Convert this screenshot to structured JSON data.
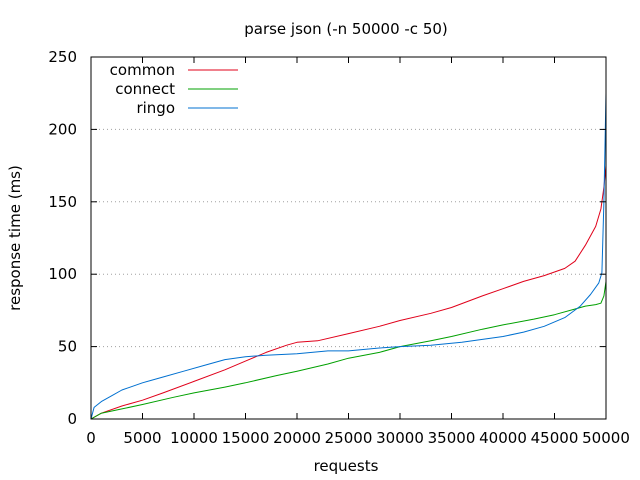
{
  "chart_data": {
    "type": "line",
    "title": "parse json (-n 50000 -c 50)",
    "xlabel": "requests",
    "ylabel": "response time (ms)",
    "xlim": [
      0,
      50000
    ],
    "ylim": [
      0,
      250
    ],
    "xticks": [
      0,
      5000,
      10000,
      15000,
      20000,
      25000,
      30000,
      35000,
      40000,
      45000,
      50000
    ],
    "xtick_labels": [
      "0",
      "5000",
      "10000",
      "15000",
      "20000",
      "25000",
      "30000",
      "35000",
      "40000",
      "45000",
      "50000"
    ],
    "yticks": [
      0,
      50,
      100,
      150,
      200,
      250
    ],
    "ytick_labels": [
      "0",
      "50",
      "100",
      "150",
      "200",
      "250"
    ],
    "grid": true,
    "legend_position": "top-left",
    "series": [
      {
        "name": "common",
        "color": "#e0001a",
        "points": [
          [
            0,
            0
          ],
          [
            1000,
            4
          ],
          [
            3000,
            9
          ],
          [
            5000,
            13
          ],
          [
            7000,
            18
          ],
          [
            10000,
            26
          ],
          [
            13000,
            34
          ],
          [
            15000,
            40
          ],
          [
            17000,
            46
          ],
          [
            19000,
            51
          ],
          [
            20000,
            53
          ],
          [
            22000,
            54
          ],
          [
            25000,
            59
          ],
          [
            28000,
            64
          ],
          [
            30000,
            68
          ],
          [
            33000,
            73
          ],
          [
            35000,
            77
          ],
          [
            38000,
            85
          ],
          [
            40000,
            90
          ],
          [
            42000,
            95
          ],
          [
            44000,
            99
          ],
          [
            46000,
            104
          ],
          [
            47000,
            109
          ],
          [
            48000,
            120
          ],
          [
            49000,
            133
          ],
          [
            49500,
            145
          ],
          [
            49800,
            160
          ],
          [
            50000,
            175
          ]
        ]
      },
      {
        "name": "connect",
        "color": "#00a000",
        "points": [
          [
            0,
            0
          ],
          [
            1000,
            4
          ],
          [
            3000,
            7
          ],
          [
            5000,
            10
          ],
          [
            8000,
            15
          ],
          [
            10000,
            18
          ],
          [
            13000,
            22
          ],
          [
            15000,
            25
          ],
          [
            18000,
            30
          ],
          [
            20000,
            33
          ],
          [
            23000,
            38
          ],
          [
            25000,
            42
          ],
          [
            28000,
            46
          ],
          [
            30000,
            50
          ],
          [
            33000,
            54
          ],
          [
            35000,
            57
          ],
          [
            38000,
            62
          ],
          [
            40000,
            65
          ],
          [
            43000,
            69
          ],
          [
            45000,
            72
          ],
          [
            47000,
            76
          ],
          [
            48000,
            78
          ],
          [
            49000,
            79
          ],
          [
            49500,
            80
          ],
          [
            49800,
            85
          ],
          [
            50000,
            95
          ]
        ]
      },
      {
        "name": "ringo",
        "color": "#0070d0",
        "points": [
          [
            0,
            0
          ],
          [
            300,
            8
          ],
          [
            1000,
            12
          ],
          [
            2000,
            16
          ],
          [
            3000,
            20
          ],
          [
            5000,
            25
          ],
          [
            7000,
            29
          ],
          [
            9000,
            33
          ],
          [
            11000,
            37
          ],
          [
            13000,
            41
          ],
          [
            15000,
            43
          ],
          [
            17000,
            44
          ],
          [
            20000,
            45
          ],
          [
            23000,
            47
          ],
          [
            25000,
            47
          ],
          [
            28000,
            49
          ],
          [
            30000,
            50
          ],
          [
            33000,
            51
          ],
          [
            36000,
            53
          ],
          [
            38000,
            55
          ],
          [
            40000,
            57
          ],
          [
            42000,
            60
          ],
          [
            44000,
            64
          ],
          [
            46000,
            70
          ],
          [
            47500,
            78
          ],
          [
            48500,
            86
          ],
          [
            49300,
            94
          ],
          [
            49600,
            101
          ],
          [
            49800,
            150
          ],
          [
            50000,
            225
          ]
        ]
      }
    ]
  }
}
